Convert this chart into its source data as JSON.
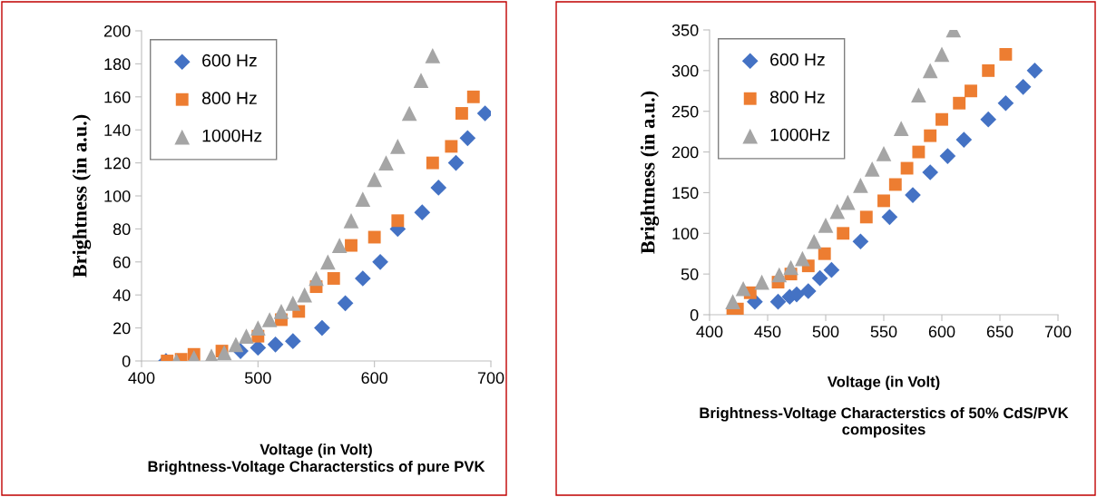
{
  "chart_data": [
    {
      "type": "scatter",
      "xlabel": "Voltage (in Volt)",
      "ylabel": "Brightness (in a.u.)",
      "annotations": [
        "Brightness-Voltage Characterstics of pure PVK"
      ],
      "xlim": [
        400,
        700
      ],
      "xticks": [
        400,
        500,
        600,
        700
      ],
      "ylim": [
        0,
        200
      ],
      "yticks": [
        0,
        20,
        40,
        60,
        80,
        100,
        120,
        140,
        160,
        180,
        200
      ],
      "grid": false,
      "legend": "top left",
      "series": [
        {
          "name": "600 Hz",
          "color": "#4472c4",
          "marker": "diamond",
          "x": [
            421,
            439,
            460,
            469,
            485,
            500,
            515,
            530,
            555,
            575,
            590,
            605,
            620,
            641,
            655,
            670,
            680,
            695
          ],
          "values": [
            0,
            null,
            null,
            null,
            6,
            8,
            10,
            12,
            20,
            35,
            50,
            60,
            80,
            90,
            105,
            120,
            135,
            150
          ]
        },
        {
          "name": "800 Hz",
          "color": "#ed7d31",
          "marker": "square",
          "x": [
            422,
            434,
            445,
            469,
            500,
            520,
            535,
            550,
            565,
            580,
            600,
            620,
            650,
            666,
            675,
            685
          ],
          "values": [
            0,
            1,
            4,
            6,
            15,
            25,
            30,
            45,
            50,
            70,
            75,
            85,
            120,
            130,
            150,
            160
          ]
        },
        {
          "name": "1000Hz",
          "color": "#a5a5a5",
          "marker": "triangle",
          "x": [
            430,
            445,
            460,
            471,
            481,
            490,
            500,
            510,
            520,
            530,
            540,
            550,
            560,
            570,
            580,
            590,
            600,
            610,
            620,
            630,
            640,
            650
          ],
          "values": [
            0,
            2,
            3,
            5,
            10,
            15,
            20,
            25,
            30,
            35,
            40,
            50,
            60,
            70,
            85,
            98,
            110,
            120,
            130,
            150,
            170,
            185
          ]
        }
      ]
    },
    {
      "type": "scatter",
      "xlabel": "Voltage (in Volt)",
      "ylabel": "Brightness (in a.u.)",
      "annotations": [
        "Brightness-Voltage Characterstics of 50% CdS/PVK composites"
      ],
      "xlim": [
        400,
        700
      ],
      "xticks": [
        400,
        450,
        500,
        550,
        600,
        650,
        700
      ],
      "ylim": [
        0,
        350
      ],
      "yticks": [
        0,
        50,
        100,
        150,
        200,
        250,
        300,
        350
      ],
      "grid": false,
      "legend": "top left",
      "series": [
        {
          "name": "600 Hz",
          "color": "#4472c4",
          "marker": "diamond",
          "x": [
            439,
            459,
            469,
            475,
            485,
            495,
            505,
            530,
            555,
            575,
            590,
            605,
            619,
            640,
            655,
            670,
            680
          ],
          "values": [
            16,
            16,
            22,
            25,
            29,
            45,
            55,
            90,
            120,
            147,
            175,
            195,
            215,
            240,
            260,
            280,
            300
          ]
        },
        {
          "name": "800 Hz",
          "color": "#ed7d31",
          "marker": "square",
          "x": [
            420,
            424,
            435,
            445,
            459,
            470,
            485,
            499,
            515,
            535,
            550,
            560,
            570,
            580,
            590,
            600,
            615,
            625,
            640,
            655
          ],
          "values": [
            0,
            7,
            27,
            null,
            40,
            50,
            60,
            75,
            100,
            120,
            140,
            160,
            180,
            200,
            220,
            240,
            260,
            275,
            300,
            320
          ]
        },
        {
          "name": "1000Hz",
          "color": "#a5a5a5",
          "marker": "triangle",
          "x": [
            420,
            429,
            445,
            460,
            470,
            480,
            490,
            500,
            510,
            519,
            530,
            540,
            550,
            565,
            580,
            590,
            600,
            610
          ],
          "values": [
            16,
            32,
            40,
            49,
            58,
            69,
            90,
            110,
            127,
            138,
            159,
            179,
            198,
            229,
            270,
            300,
            320,
            350
          ]
        }
      ]
    }
  ]
}
